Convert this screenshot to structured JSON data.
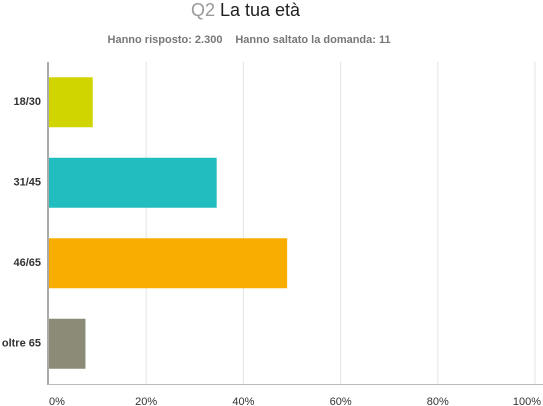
{
  "chart_data": {
    "type": "hbar",
    "title_prefix": "Q2",
    "title": "La tua età",
    "answered": "Hanno risposto: 2.300",
    "skipped": "Hanno saltato la domanda: 11",
    "categories": [
      "18/30",
      "31/45",
      "46/65",
      "oltre 65"
    ],
    "values": [
      9,
      34.5,
      49,
      7.5
    ],
    "colors": [
      "#d0d500",
      "#21bdbf",
      "#f8ad00",
      "#8c8b78"
    ],
    "xlim": [
      0,
      100
    ],
    "xticks": [
      {
        "value": 0,
        "label": "0%"
      },
      {
        "value": 20,
        "label": "20%"
      },
      {
        "value": 40,
        "label": "40%"
      },
      {
        "value": 60,
        "label": "60%"
      },
      {
        "value": 80,
        "label": "80%"
      },
      {
        "value": 100,
        "label": "100%"
      }
    ],
    "grid": true
  }
}
